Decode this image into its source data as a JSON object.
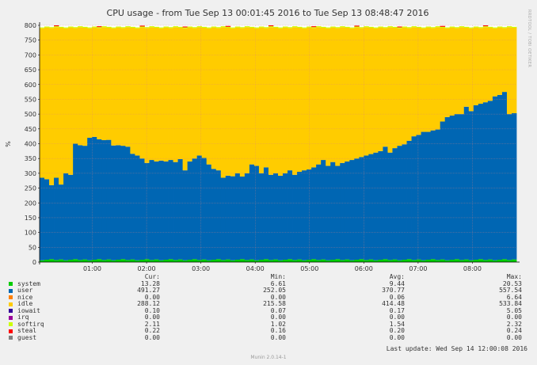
{
  "chart_data": {
    "type": "area",
    "title": "CPU usage - from Tue Sep 13 00:01:45 2016 to Tue Sep 13 08:48:47 2016",
    "ylabel": "%",
    "ylim": [
      0,
      800
    ],
    "yticks": [
      0,
      50,
      100,
      150,
      200,
      250,
      300,
      350,
      400,
      450,
      500,
      550,
      600,
      650,
      700,
      750,
      800
    ],
    "x_range_hours": [
      0.03,
      8.81
    ],
    "xticks": [
      {
        "hour": 1,
        "label": "01:00"
      },
      {
        "hour": 2,
        "label": "02:00"
      },
      {
        "hour": 3,
        "label": "03:00"
      },
      {
        "hour": 4,
        "label": "04:00"
      },
      {
        "hour": 5,
        "label": "05:00"
      },
      {
        "hour": 6,
        "label": "06:00"
      },
      {
        "hour": 7,
        "label": "07:00"
      },
      {
        "hour": 8,
        "label": "08:00"
      }
    ],
    "grid": true,
    "stacked": true,
    "series_colors": {
      "system": "#00cc00",
      "user": "#0066b3",
      "nice": "#ff8000",
      "idle": "#ffcc00",
      "iowait": "#330099",
      "irq": "#990099",
      "softirq": "#ccff00",
      "steal": "#ff0000",
      "guest": "#808080"
    },
    "user_top": [
      285,
      280,
      260,
      285,
      262,
      300,
      295,
      400,
      395,
      393,
      420,
      423,
      415,
      412,
      413,
      394,
      395,
      393,
      390,
      366,
      360,
      350,
      335,
      345,
      340,
      343,
      340,
      345,
      338,
      348,
      310,
      340,
      350,
      360,
      352,
      330,
      315,
      310,
      285,
      292,
      290,
      300,
      289,
      300,
      330,
      325,
      300,
      320,
      295,
      300,
      292,
      300,
      310,
      295,
      305,
      310,
      313,
      320,
      330,
      345,
      325,
      338,
      325,
      335,
      340,
      345,
      350,
      355,
      360,
      365,
      370,
      375,
      390,
      370,
      385,
      393,
      398,
      410,
      425,
      430,
      440,
      440,
      445,
      448,
      475,
      490,
      495,
      500,
      500,
      525,
      510,
      530,
      535,
      540,
      545,
      560,
      565,
      575,
      500,
      503
    ],
    "rows": [
      {
        "name": "system",
        "cur": "13.28",
        "min": "6.61",
        "avg": "9.44",
        "max": "20.53"
      },
      {
        "name": "user",
        "cur": "491.27",
        "min": "252.05",
        "avg": "370.77",
        "max": "557.54"
      },
      {
        "name": "nice",
        "cur": "0.00",
        "min": "0.00",
        "avg": "0.06",
        "max": "6.64"
      },
      {
        "name": "idle",
        "cur": "288.12",
        "min": "215.58",
        "avg": "414.48",
        "max": "533.84"
      },
      {
        "name": "iowait",
        "cur": "0.10",
        "min": "0.07",
        "avg": "0.17",
        "max": "5.05"
      },
      {
        "name": "irq",
        "cur": "0.00",
        "min": "0.00",
        "avg": "0.00",
        "max": "0.00"
      },
      {
        "name": "softirq",
        "cur": "2.11",
        "min": "1.02",
        "avg": "1.54",
        "max": "2.32"
      },
      {
        "name": "steal",
        "cur": "0.22",
        "min": "0.16",
        "avg": "0.20",
        "max": "0.24"
      },
      {
        "name": "guest",
        "cur": "0.00",
        "min": "0.00",
        "avg": "0.00",
        "max": "0.00"
      }
    ]
  },
  "legend_headers": {
    "cur": "Cur:",
    "min": "Min:",
    "avg": "Avg:",
    "max": "Max:"
  },
  "last_update": "Last update: Wed Sep 14 12:00:08 2016",
  "version": "Munin 2.0.14-1",
  "watermark": "RRDTOOL / TOBI OETIKER"
}
